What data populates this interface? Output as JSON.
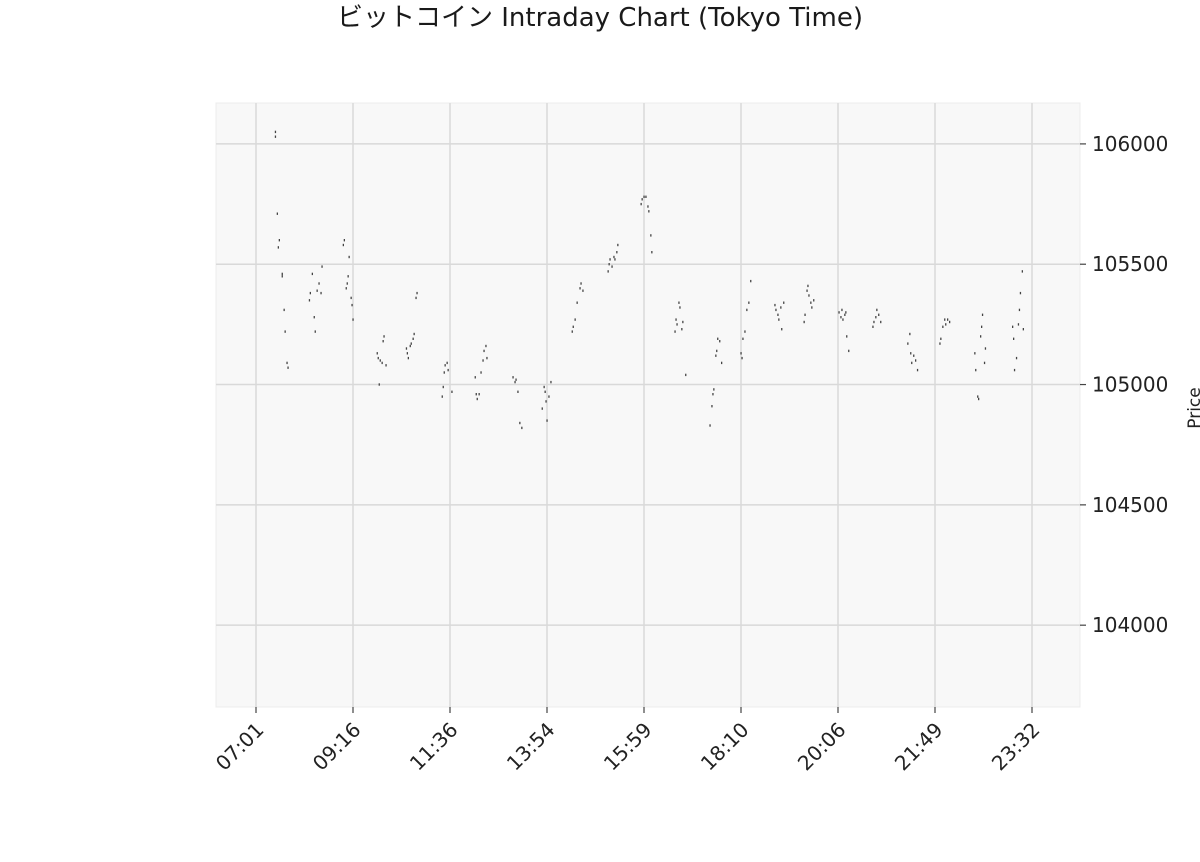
{
  "chart_data": {
    "type": "scatter",
    "title": "ビットコイン Intraday Chart (Tokyo Time)",
    "xlabel": "",
    "ylabel": "Price",
    "x_tick_labels": [
      "07:01",
      "09:16",
      "11:36",
      "13:54",
      "15:59",
      "18:10",
      "20:06",
      "21:49",
      "23:32"
    ],
    "y_ticks": [
      104000,
      104500,
      105000,
      105500,
      106000
    ],
    "ylim": [
      103660,
      106170
    ],
    "grid": true,
    "legend": "none",
    "colors": {
      "plot_background": "#f8f8f8",
      "grid": "#d9d9d9",
      "points": "#444444"
    },
    "series": [
      {
        "points": [
          [
            0.2,
            106030
          ],
          [
            0.2,
            106050
          ],
          [
            0.22,
            105710
          ],
          [
            0.23,
            105570
          ],
          [
            0.24,
            105600
          ],
          [
            0.27,
            105450
          ],
          [
            0.27,
            105460
          ],
          [
            0.29,
            105310
          ],
          [
            0.3,
            105220
          ],
          [
            0.32,
            105090
          ],
          [
            0.33,
            105070
          ],
          [
            0.55,
            105350
          ],
          [
            0.56,
            105380
          ],
          [
            0.58,
            105460
          ],
          [
            0.6,
            105280
          ],
          [
            0.61,
            105220
          ],
          [
            0.63,
            105390
          ],
          [
            0.65,
            105420
          ],
          [
            0.67,
            105380
          ],
          [
            0.68,
            105490
          ],
          [
            0.9,
            105580
          ],
          [
            0.91,
            105600
          ],
          [
            0.93,
            105400
          ],
          [
            0.94,
            105420
          ],
          [
            0.95,
            105450
          ],
          [
            0.96,
            105530
          ],
          [
            0.98,
            105360
          ],
          [
            0.99,
            105330
          ],
          [
            1.0,
            105270
          ],
          [
            1.25,
            105130
          ],
          [
            1.26,
            105110
          ],
          [
            1.27,
            105000
          ],
          [
            1.28,
            105100
          ],
          [
            1.3,
            105090
          ],
          [
            1.31,
            105180
          ],
          [
            1.32,
            105200
          ],
          [
            1.34,
            105080
          ],
          [
            1.55,
            105150
          ],
          [
            1.56,
            105130
          ],
          [
            1.57,
            105110
          ],
          [
            1.59,
            105160
          ],
          [
            1.6,
            105170
          ],
          [
            1.62,
            105190
          ],
          [
            1.63,
            105210
          ],
          [
            1.65,
            105360
          ],
          [
            1.66,
            105380
          ],
          [
            1.92,
            104950
          ],
          [
            1.93,
            104990
          ],
          [
            1.94,
            105050
          ],
          [
            1.95,
            105080
          ],
          [
            1.97,
            105090
          ],
          [
            1.98,
            105060
          ],
          [
            2.02,
            104970
          ],
          [
            2.26,
            105030
          ],
          [
            2.27,
            104960
          ],
          [
            2.28,
            104940
          ],
          [
            2.3,
            104960
          ],
          [
            2.32,
            105050
          ],
          [
            2.34,
            105100
          ],
          [
            2.35,
            105140
          ],
          [
            2.37,
            105160
          ],
          [
            2.38,
            105110
          ],
          [
            2.65,
            105030
          ],
          [
            2.67,
            105010
          ],
          [
            2.68,
            105020
          ],
          [
            2.7,
            104970
          ],
          [
            2.72,
            104840
          ],
          [
            2.74,
            104820
          ],
          [
            2.95,
            104900
          ],
          [
            2.97,
            104990
          ],
          [
            2.98,
            104970
          ],
          [
            2.99,
            104930
          ],
          [
            3.0,
            104850
          ],
          [
            3.02,
            104950
          ],
          [
            3.04,
            105010
          ],
          [
            3.26,
            105220
          ],
          [
            3.27,
            105240
          ],
          [
            3.29,
            105270
          ],
          [
            3.31,
            105340
          ],
          [
            3.34,
            105400
          ],
          [
            3.35,
            105420
          ],
          [
            3.37,
            105390
          ],
          [
            3.63,
            105470
          ],
          [
            3.64,
            105500
          ],
          [
            3.65,
            105520
          ],
          [
            3.67,
            105490
          ],
          [
            3.69,
            105530
          ],
          [
            3.7,
            105520
          ],
          [
            3.72,
            105550
          ],
          [
            3.73,
            105580
          ],
          [
            3.97,
            105750
          ],
          [
            3.98,
            105770
          ],
          [
            4.0,
            105780
          ],
          [
            4.02,
            105780
          ],
          [
            4.04,
            105740
          ],
          [
            4.05,
            105720
          ],
          [
            4.07,
            105620
          ],
          [
            4.08,
            105550
          ],
          [
            4.32,
            105220
          ],
          [
            4.33,
            105270
          ],
          [
            4.34,
            105250
          ],
          [
            4.36,
            105340
          ],
          [
            4.37,
            105320
          ],
          [
            4.39,
            105230
          ],
          [
            4.4,
            105260
          ],
          [
            4.43,
            105040
          ],
          [
            4.68,
            104830
          ],
          [
            4.7,
            104910
          ],
          [
            4.71,
            104960
          ],
          [
            4.72,
            104980
          ],
          [
            4.74,
            105120
          ],
          [
            4.75,
            105140
          ],
          [
            4.76,
            105190
          ],
          [
            4.78,
            105180
          ],
          [
            4.8,
            105090
          ],
          [
            5.0,
            105130
          ],
          [
            5.01,
            105110
          ],
          [
            5.02,
            105190
          ],
          [
            5.04,
            105220
          ],
          [
            5.06,
            105310
          ],
          [
            5.08,
            105340
          ],
          [
            5.1,
            105430
          ],
          [
            5.35,
            105330
          ],
          [
            5.36,
            105310
          ],
          [
            5.38,
            105290
          ],
          [
            5.39,
            105270
          ],
          [
            5.41,
            105320
          ],
          [
            5.42,
            105230
          ],
          [
            5.44,
            105340
          ],
          [
            5.65,
            105260
          ],
          [
            5.66,
            105290
          ],
          [
            5.68,
            105390
          ],
          [
            5.69,
            105410
          ],
          [
            5.7,
            105370
          ],
          [
            5.72,
            105340
          ],
          [
            5.73,
            105320
          ],
          [
            5.75,
            105350
          ],
          [
            6.01,
            105300
          ],
          [
            6.03,
            105280
          ],
          [
            6.04,
            105310
          ],
          [
            6.05,
            105270
          ],
          [
            6.07,
            105290
          ],
          [
            6.08,
            105300
          ],
          [
            6.09,
            105200
          ],
          [
            6.11,
            105140
          ],
          [
            6.36,
            105240
          ],
          [
            6.37,
            105260
          ],
          [
            6.39,
            105280
          ],
          [
            6.4,
            105310
          ],
          [
            6.42,
            105290
          ],
          [
            6.44,
            105260
          ],
          [
            6.72,
            105170
          ],
          [
            6.74,
            105210
          ],
          [
            6.75,
            105130
          ],
          [
            6.76,
            105090
          ],
          [
            6.78,
            105120
          ],
          [
            6.8,
            105100
          ],
          [
            6.82,
            105060
          ],
          [
            7.05,
            105170
          ],
          [
            7.06,
            105190
          ],
          [
            7.08,
            105240
          ],
          [
            7.1,
            105270
          ],
          [
            7.11,
            105250
          ],
          [
            7.13,
            105270
          ],
          [
            7.15,
            105260
          ],
          [
            7.41,
            105130
          ],
          [
            7.42,
            105060
          ],
          [
            7.44,
            104950
          ],
          [
            7.45,
            104940
          ],
          [
            7.47,
            105200
          ],
          [
            7.48,
            105240
          ],
          [
            7.49,
            105290
          ],
          [
            7.51,
            105090
          ],
          [
            7.52,
            105150
          ],
          [
            7.8,
            105240
          ],
          [
            7.81,
            105190
          ],
          [
            7.82,
            105060
          ],
          [
            7.84,
            105110
          ],
          [
            7.86,
            105250
          ],
          [
            7.87,
            105310
          ],
          [
            7.88,
            105380
          ],
          [
            7.9,
            105470
          ],
          [
            7.91,
            105230
          ]
        ]
      }
    ]
  }
}
